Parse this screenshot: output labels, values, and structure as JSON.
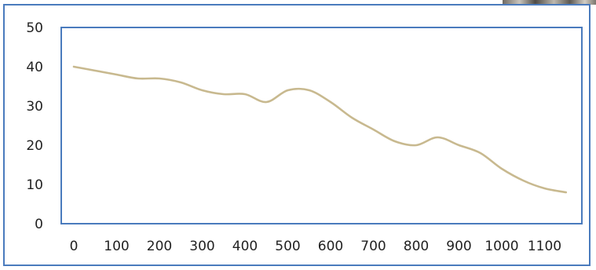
{
  "chart_data": {
    "type": "line",
    "title": "",
    "xlabel": "",
    "ylabel": "",
    "xlim": [
      0,
      1150
    ],
    "ylim": [
      0,
      50
    ],
    "x_ticks": [
      "0",
      "100",
      "200",
      "300",
      "400",
      "500",
      "600",
      "700",
      "800",
      "900",
      "1000",
      "1100"
    ],
    "y_ticks": [
      "0",
      "10",
      "20",
      "30",
      "40",
      "50"
    ],
    "grid": false,
    "legend": "none",
    "series": [
      {
        "color": "#c8b98f",
        "x": [
          0,
          50,
          100,
          150,
          200,
          250,
          300,
          350,
          400,
          450,
          500,
          550,
          600,
          650,
          700,
          750,
          800,
          850,
          900,
          950,
          1000,
          1050,
          1100,
          1150
        ],
        "y": [
          40,
          39,
          38,
          37,
          37,
          36,
          34,
          33,
          33,
          31,
          34,
          34,
          31,
          27,
          24,
          21,
          20,
          22,
          20,
          18,
          14,
          11,
          9,
          8
        ]
      }
    ]
  }
}
